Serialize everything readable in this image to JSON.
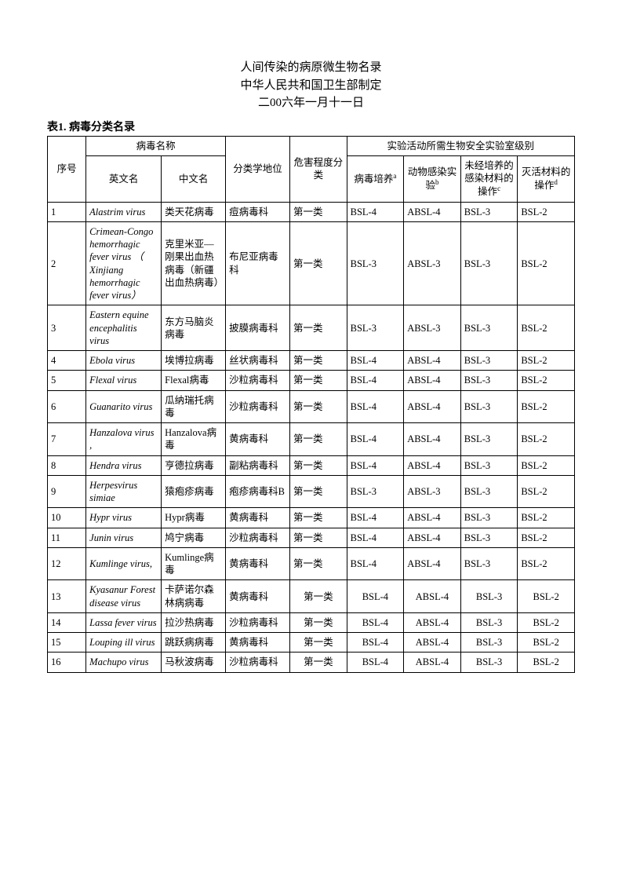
{
  "header": {
    "line1": "人间传染的病原微生物名录",
    "line2": "中华人民共和国卫生部制定",
    "line3": "二00六年一月十一日"
  },
  "table": {
    "caption": "表1. 病毒分类名录",
    "columns": {
      "seq": "序号",
      "name_group": "病毒名称",
      "en": "英文名",
      "cn": "中文名",
      "taxonomy": "分类学地位",
      "hazard": "危害程度分类",
      "lab_group": "实验活动所需生物安全实验室级别",
      "culture": "病毒培养",
      "culture_sup": "a",
      "animal": "动物感染实验",
      "animal_sup": "b",
      "uncultured": "未经培养的感染材料的操作",
      "uncultured_sup": "c",
      "inactivated": "灭活材料的操作",
      "inactivated_sup": "d"
    },
    "rows": [
      {
        "seq": "1",
        "en": "Alastrim virus",
        "cn": "类天花病毒",
        "tax": "痘病毒科",
        "haz": "第一类",
        "c": "BSL-4",
        "a": "ABSL-4",
        "u": "BSL-3",
        "i": "BSL-2"
      },
      {
        "seq": "2",
        "en": "Crimean-Congo hemorrhagic fever virus （ Xinjiang hemorrhagic fever virus）",
        "cn": "克里米亚—刚果出血热病毒（新疆出血热病毒）",
        "tax": "布尼亚病毒科",
        "haz": "第一类",
        "c": "BSL-3",
        "a": "ABSL-3",
        "u": "BSL-3",
        "i": "BSL-2"
      },
      {
        "seq": "3",
        "en": "Eastern equine encephalitis virus",
        "cn": "东方马脑炎病毒",
        "tax": "披膜病毒科",
        "haz": "第一类",
        "c": "BSL-3",
        "a": "ABSL-3",
        "u": "BSL-3",
        "i": "BSL-2"
      },
      {
        "seq": "4",
        "en": "Ebola virus",
        "cn": "埃博拉病毒",
        "tax": "丝状病毒科",
        "haz": "第一类",
        "c": "BSL-4",
        "a": "ABSL-4",
        "u": "BSL-3",
        "i": "BSL-2"
      },
      {
        "seq": "5",
        "en": "Flexal virus",
        "cn": "Flexal病毒",
        "tax": "沙粒病毒科",
        "haz": "第一类",
        "c": "BSL-4",
        "a": "ABSL-4",
        "u": "BSL-3",
        "i": "BSL-2"
      },
      {
        "seq": "6",
        "en": "Guanarito virus",
        "cn": "瓜纳瑞托病毒",
        "tax": "沙粒病毒科",
        "haz": "第一类",
        "c": "BSL-4",
        "a": "ABSL-4",
        "u": "BSL-3",
        "i": "BSL-2"
      },
      {
        "seq": "7",
        "en": "Hanzalova virus ,",
        "cn": "Hanzalova病毒",
        "tax": "黄病毒科",
        "haz": "第一类",
        "c": "BSL-4",
        "a": "ABSL-4",
        "u": "BSL-3",
        "i": "BSL-2"
      },
      {
        "seq": "8",
        "en": "Hendra virus",
        "cn": "亨德拉病毒",
        "tax": "副粘病毒科",
        "haz": "第一类",
        "c": "BSL-4",
        "a": "ABSL-4",
        "u": "BSL-3",
        "i": "BSL-2"
      },
      {
        "seq": "9",
        "en": "Herpesvirus simiae",
        "cn": "猿疱疹病毒",
        "tax": "疱疹病毒科B",
        "haz": "第一类",
        "c": "BSL-3",
        "a": "ABSL-3",
        "u": "BSL-3",
        "i": "BSL-2"
      },
      {
        "seq": "10",
        "en": "Hypr virus",
        "cn": "Hypr病毒",
        "tax": "黄病毒科",
        "haz": "第一类",
        "c": "BSL-4",
        "a": "ABSL-4",
        "u": "BSL-3",
        "i": "BSL-2"
      },
      {
        "seq": "11",
        "en": "Junin virus",
        "cn": "鸠宁病毒",
        "tax": "沙粒病毒科",
        "haz": "第一类",
        "c": "BSL-4",
        "a": "ABSL-4",
        "u": "BSL-3",
        "i": "BSL-2"
      },
      {
        "seq": "12",
        "en": "Kumlinge virus,",
        "cn": "Kumlinge病毒",
        "tax": "黄病毒科",
        "haz": "第一类",
        "c": "BSL-4",
        "a": "ABSL-4",
        "u": "BSL-3",
        "i": "BSL-2"
      },
      {
        "seq": "13",
        "en": "Kyasanur Forest disease virus",
        "cn": "卡萨诺尔森林病病毒",
        "tax": "黄病毒科",
        "haz": "第一类",
        "c": "BSL-4",
        "a": "ABSL-4",
        "u": "BSL-3",
        "i": "BSL-2",
        "center": true
      },
      {
        "seq": "14",
        "en": "Lassa fever virus",
        "cn": "拉沙热病毒",
        "tax": "沙粒病毒科",
        "haz": "第一类",
        "c": "BSL-4",
        "a": "ABSL-4",
        "u": "BSL-3",
        "i": "BSL-2",
        "center": true
      },
      {
        "seq": "15",
        "en": "Louping ill virus",
        "cn": "跳跃病病毒",
        "tax": "黄病毒科",
        "haz": "第一类",
        "c": "BSL-4",
        "a": "ABSL-4",
        "u": "BSL-3",
        "i": "BSL-2",
        "center": true
      },
      {
        "seq": "16",
        "en": "Machupo virus",
        "cn": "马秋波病毒",
        "tax": "沙粒病毒科",
        "haz": "第一类",
        "c": "BSL-4",
        "a": "ABSL-4",
        "u": "BSL-3",
        "i": "BSL-2",
        "center": true
      }
    ]
  }
}
